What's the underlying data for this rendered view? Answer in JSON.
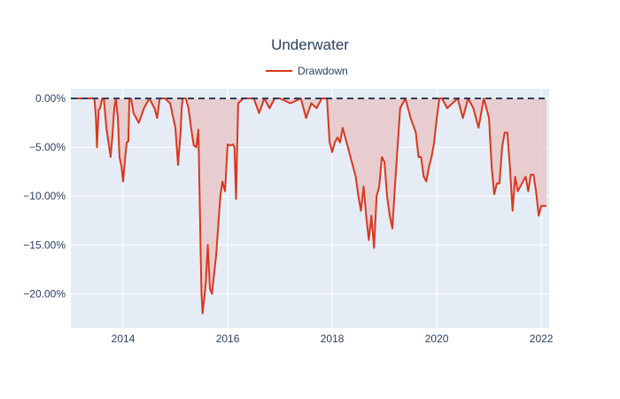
{
  "chart_data": {
    "type": "area",
    "title": "Underwater",
    "xlabel": "",
    "ylabel": "",
    "x_ticks": [
      "2014",
      "2016",
      "2018",
      "2020",
      "2022"
    ],
    "y_ticks": [
      "0.00%",
      "−5.00%",
      "−10.00%",
      "−15.00%",
      "−20.00%"
    ],
    "xlim": [
      2013.0,
      2022.15
    ],
    "ylim": [
      -0.235,
      0.01
    ],
    "grid": true,
    "legend_position": "top-center",
    "series": [
      {
        "name": "Drawdown",
        "color": "#d9381e",
        "fill_color": "#e8c8c8",
        "x": [
          2013.0,
          2013.45,
          2013.48,
          2013.5,
          2013.53,
          2013.56,
          2013.6,
          2013.63,
          2013.68,
          2013.72,
          2013.76,
          2013.8,
          2013.83,
          2013.86,
          2013.9,
          2013.93,
          2013.97,
          2014.0,
          2014.04,
          2014.07,
          2014.1,
          2014.12,
          2014.15,
          2014.2,
          2014.3,
          2014.4,
          2014.5,
          2014.55,
          2014.6,
          2014.65,
          2014.7,
          2014.8,
          2014.9,
          2015.0,
          2015.05,
          2015.1,
          2015.12,
          2015.14,
          2015.17,
          2015.2,
          2015.25,
          2015.3,
          2015.35,
          2015.4,
          2015.44,
          2015.48,
          2015.5,
          2015.52,
          2015.55,
          2015.58,
          2015.62,
          2015.66,
          2015.7,
          2015.74,
          2015.78,
          2015.82,
          2015.86,
          2015.9,
          2015.95,
          2016.0,
          2016.05,
          2016.1,
          2016.13,
          2016.16,
          2016.2,
          2016.3,
          2016.4,
          2016.5,
          2016.6,
          2016.7,
          2016.8,
          2016.9,
          2017.0,
          2017.2,
          2017.4,
          2017.5,
          2017.6,
          2017.7,
          2017.8,
          2017.9,
          2017.95,
          2018.0,
          2018.05,
          2018.1,
          2018.15,
          2018.2,
          2018.25,
          2018.3,
          2018.35,
          2018.4,
          2018.45,
          2018.5,
          2018.55,
          2018.6,
          2018.65,
          2018.7,
          2018.75,
          2018.8,
          2018.85,
          2018.9,
          2018.95,
          2019.0,
          2019.05,
          2019.1,
          2019.15,
          2019.2,
          2019.3,
          2019.4,
          2019.5,
          2019.6,
          2019.65,
          2019.7,
          2019.75,
          2019.8,
          2019.85,
          2019.9,
          2019.95,
          2020.0,
          2020.05,
          2020.1,
          2020.2,
          2020.3,
          2020.4,
          2020.5,
          2020.6,
          2020.7,
          2020.8,
          2020.9,
          2021.0,
          2021.05,
          2021.1,
          2021.15,
          2021.2,
          2021.25,
          2021.3,
          2021.35,
          2021.4,
          2021.45,
          2021.5,
          2021.55,
          2021.6,
          2021.65,
          2021.7,
          2021.75,
          2021.8,
          2021.85,
          2021.9,
          2021.95,
          2022.0,
          2022.05,
          2022.1
        ],
        "y": [
          0.0,
          0.0,
          -0.02,
          -0.05,
          -0.012,
          -0.01,
          0.0,
          0.0,
          -0.03,
          -0.045,
          -0.06,
          -0.035,
          -0.01,
          0.0,
          -0.02,
          -0.06,
          -0.07,
          -0.085,
          -0.06,
          -0.045,
          -0.044,
          0.0,
          0.0,
          -0.015,
          -0.025,
          -0.01,
          0.0,
          -0.005,
          -0.01,
          -0.02,
          0.0,
          0.0,
          -0.005,
          -0.03,
          -0.068,
          -0.035,
          -0.01,
          0.0,
          0.0,
          0.0,
          -0.01,
          -0.03,
          -0.048,
          -0.05,
          -0.032,
          -0.15,
          -0.2,
          -0.22,
          -0.205,
          -0.19,
          -0.15,
          -0.195,
          -0.2,
          -0.18,
          -0.16,
          -0.13,
          -0.1,
          -0.085,
          -0.095,
          -0.047,
          -0.048,
          -0.047,
          -0.05,
          -0.103,
          -0.005,
          0.0,
          0.0,
          0.0,
          -0.015,
          0.0,
          -0.01,
          0.0,
          0.0,
          -0.005,
          0.0,
          -0.02,
          -0.005,
          -0.01,
          0.0,
          0.0,
          -0.045,
          -0.055,
          -0.045,
          -0.04,
          -0.045,
          -0.03,
          -0.04,
          -0.05,
          -0.06,
          -0.07,
          -0.08,
          -0.1,
          -0.115,
          -0.09,
          -0.12,
          -0.145,
          -0.12,
          -0.153,
          -0.1,
          -0.09,
          -0.06,
          -0.065,
          -0.1,
          -0.12,
          -0.133,
          -0.09,
          -0.01,
          0.0,
          -0.02,
          -0.035,
          -0.06,
          -0.06,
          -0.08,
          -0.085,
          -0.07,
          -0.06,
          -0.045,
          -0.02,
          0.0,
          0.0,
          -0.01,
          -0.005,
          0.0,
          -0.02,
          0.0,
          -0.01,
          -0.03,
          0.0,
          -0.02,
          -0.07,
          -0.098,
          -0.087,
          -0.087,
          -0.05,
          -0.035,
          -0.035,
          -0.07,
          -0.115,
          -0.08,
          -0.095,
          -0.09,
          -0.085,
          -0.08,
          -0.095,
          -0.078,
          -0.078,
          -0.095,
          -0.12,
          -0.11,
          -0.11,
          -0.11
        ]
      },
      {
        "name": "",
        "color": "#2a3f5f",
        "dash": true,
        "x": [
          2013.0,
          2022.15
        ],
        "y": [
          0.0,
          0.0
        ]
      }
    ]
  }
}
